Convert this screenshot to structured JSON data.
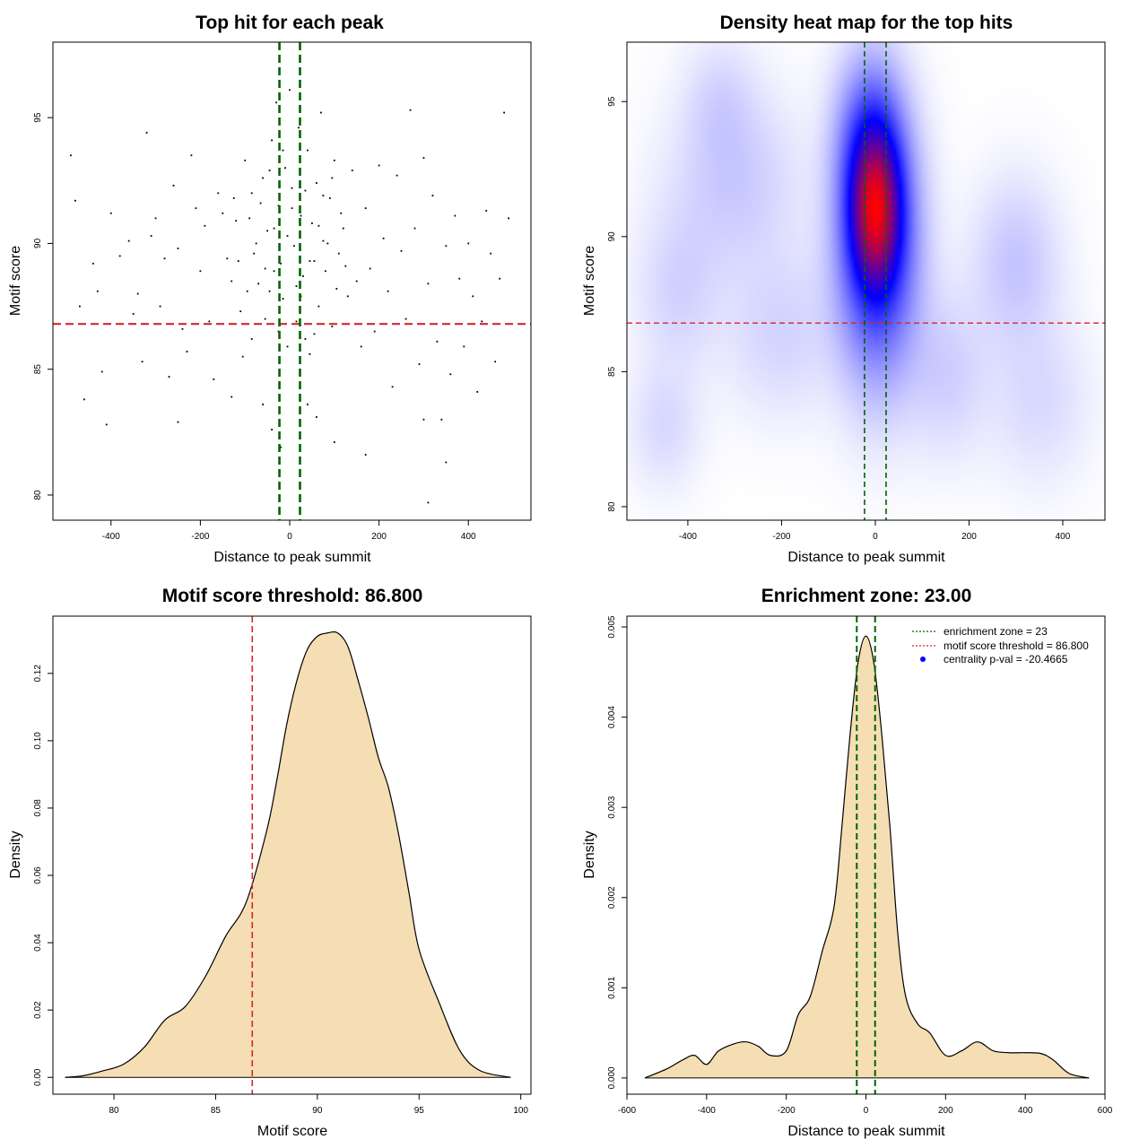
{
  "colors": {
    "threshold": "#d62728",
    "zone": "#006400",
    "fill": "#f5deb3",
    "heat_low": "#ffffff",
    "heat_mid": "#0000ff",
    "heat_high": "#ff0000",
    "legend_point": "#0000ff"
  },
  "chart_data": [
    {
      "id": "scatter",
      "type": "scatter",
      "title": "Top hit for each peak",
      "xlabel": "Distance to peak summit",
      "ylabel": "Motif score",
      "xlim": [
        -530,
        540
      ],
      "ylim": [
        79,
        98
      ],
      "xticks": [
        "-400",
        "-200",
        "0",
        "200",
        "400"
      ],
      "yticks": [
        "80",
        "85",
        "90",
        "95"
      ],
      "threshold_y": 86.8,
      "zone_x": [
        -23,
        23
      ],
      "points": [
        [
          -490,
          93.5
        ],
        [
          -480,
          91.7
        ],
        [
          -470,
          87.5
        ],
        [
          -460,
          83.8
        ],
        [
          -440,
          89.2
        ],
        [
          -430,
          88.1
        ],
        [
          -420,
          84.9
        ],
        [
          -410,
          82.8
        ],
        [
          -400,
          91.2
        ],
        [
          -380,
          89.5
        ],
        [
          -360,
          90.1
        ],
        [
          -350,
          87.2
        ],
        [
          -340,
          88.0
        ],
        [
          -330,
          85.3
        ],
        [
          -320,
          94.4
        ],
        [
          -310,
          90.3
        ],
        [
          -300,
          91.0
        ],
        [
          -290,
          87.5
        ],
        [
          -280,
          89.4
        ],
        [
          -270,
          84.7
        ],
        [
          -260,
          92.3
        ],
        [
          -250,
          89.8
        ],
        [
          -240,
          86.6
        ],
        [
          -230,
          85.7
        ],
        [
          -220,
          93.5
        ],
        [
          -210,
          91.4
        ],
        [
          -200,
          88.9
        ],
        [
          -190,
          90.7
        ],
        [
          -180,
          86.9
        ],
        [
          -170,
          84.6
        ],
        [
          -160,
          92.0
        ],
        [
          -150,
          91.2
        ],
        [
          -140,
          89.4
        ],
        [
          -130,
          88.5
        ],
        [
          -120,
          90.9
        ],
        [
          -110,
          87.3
        ],
        [
          -100,
          93.3
        ],
        [
          -90,
          91.0
        ],
        [
          -80,
          89.6
        ],
        [
          -70,
          88.4
        ],
        [
          -60,
          92.6
        ],
        [
          -50,
          90.5
        ],
        [
          -40,
          94.1
        ],
        [
          -35,
          88.9
        ],
        [
          -30,
          95.6
        ],
        [
          -25,
          91.5
        ],
        [
          -20,
          89.2
        ],
        [
          -15,
          87.8
        ],
        [
          -10,
          93.0
        ],
        [
          -5,
          90.3
        ],
        [
          0,
          96.1
        ],
        [
          5,
          92.2
        ],
        [
          10,
          89.9
        ],
        [
          15,
          88.3
        ],
        [
          20,
          94.6
        ],
        [
          25,
          91.1
        ],
        [
          30,
          88.7
        ],
        [
          35,
          86.2
        ],
        [
          40,
          93.7
        ],
        [
          50,
          90.8
        ],
        [
          55,
          89.3
        ],
        [
          60,
          92.4
        ],
        [
          65,
          87.5
        ],
        [
          70,
          95.2
        ],
        [
          75,
          90.1
        ],
        [
          80,
          88.9
        ],
        [
          90,
          91.8
        ],
        [
          95,
          86.7
        ],
        [
          100,
          93.3
        ],
        [
          110,
          89.6
        ],
        [
          120,
          90.6
        ],
        [
          130,
          87.9
        ],
        [
          140,
          92.9
        ],
        [
          150,
          88.5
        ],
        [
          160,
          85.9
        ],
        [
          170,
          91.4
        ],
        [
          180,
          89.0
        ],
        [
          190,
          86.5
        ],
        [
          200,
          93.1
        ],
        [
          210,
          90.2
        ],
        [
          220,
          88.1
        ],
        [
          230,
          84.3
        ],
        [
          240,
          92.7
        ],
        [
          250,
          89.7
        ],
        [
          260,
          87.0
        ],
        [
          270,
          95.3
        ],
        [
          280,
          90.6
        ],
        [
          290,
          85.2
        ],
        [
          300,
          93.4
        ],
        [
          310,
          88.4
        ],
        [
          320,
          91.9
        ],
        [
          330,
          86.1
        ],
        [
          340,
          83.0
        ],
        [
          350,
          89.9
        ],
        [
          360,
          84.8
        ],
        [
          370,
          91.1
        ],
        [
          380,
          88.6
        ],
        [
          390,
          85.9
        ],
        [
          400,
          90.0
        ],
        [
          410,
          87.9
        ],
        [
          420,
          84.1
        ],
        [
          430,
          86.9
        ],
        [
          440,
          91.3
        ],
        [
          450,
          89.6
        ],
        [
          460,
          85.3
        ],
        [
          470,
          88.6
        ],
        [
          480,
          95.2
        ],
        [
          490,
          91.0
        ],
        [
          -130,
          83.9
        ],
        [
          -60,
          83.6
        ],
        [
          -40,
          82.6
        ],
        [
          -20,
          81.9
        ],
        [
          40,
          83.6
        ],
        [
          60,
          83.1
        ],
        [
          100,
          82.1
        ],
        [
          170,
          81.6
        ],
        [
          300,
          83.0
        ],
        [
          310,
          79.7
        ],
        [
          350,
          81.3
        ],
        [
          -250,
          82.9
        ],
        [
          -105,
          85.5
        ],
        [
          -85,
          86.2
        ],
        [
          -55,
          87.0
        ],
        [
          -45,
          88.1
        ],
        [
          -25,
          86.5
        ],
        [
          -5,
          85.9
        ],
        [
          15,
          86.9
        ],
        [
          25,
          87.9
        ],
        [
          45,
          85.6
        ],
        [
          55,
          86.4
        ],
        [
          -75,
          90.0
        ],
        [
          -65,
          91.6
        ],
        [
          -55,
          89.0
        ],
        [
          -45,
          92.9
        ],
        [
          -35,
          90.6
        ],
        [
          -15,
          93.7
        ],
        [
          5,
          91.4
        ],
        [
          35,
          92.1
        ],
        [
          45,
          89.3
        ],
        [
          65,
          90.7
        ],
        [
          75,
          91.9
        ],
        [
          85,
          90.0
        ],
        [
          95,
          92.6
        ],
        [
          105,
          88.2
        ],
        [
          115,
          91.2
        ],
        [
          125,
          89.1
        ],
        [
          -95,
          88.1
        ],
        [
          -85,
          92.0
        ],
        [
          -115,
          89.3
        ],
        [
          -125,
          91.8
        ]
      ]
    },
    {
      "id": "heatmap",
      "type": "heatmap",
      "title": "Density heat map for the top hits",
      "xlabel": "Distance to peak summit",
      "ylabel": "Motif score",
      "xlim": [
        -530,
        490
      ],
      "ylim": [
        79.5,
        97.2
      ],
      "xticks": [
        "-400",
        "-200",
        "0",
        "200",
        "400"
      ],
      "yticks": [
        "80",
        "85",
        "90",
        "95"
      ],
      "threshold_y": 86.8,
      "zone_x": [
        -23,
        23
      ],
      "blobs": [
        {
          "x": 0,
          "y": 91.0,
          "sx": 35,
          "sy": 1.8,
          "w": 1.0
        },
        {
          "x": 5,
          "y": 89.5,
          "sx": 55,
          "sy": 3.0,
          "w": 0.55
        },
        {
          "x": -10,
          "y": 93.5,
          "sx": 45,
          "sy": 2.0,
          "w": 0.35
        },
        {
          "x": -300,
          "y": 92.0,
          "sx": 90,
          "sy": 2.2,
          "w": 0.08
        },
        {
          "x": -420,
          "y": 88.0,
          "sx": 60,
          "sy": 2.0,
          "w": 0.06
        },
        {
          "x": 300,
          "y": 89.0,
          "sx": 60,
          "sy": 2.0,
          "w": 0.09
        },
        {
          "x": -200,
          "y": 86.5,
          "sx": 80,
          "sy": 2.0,
          "w": 0.06
        },
        {
          "x": 150,
          "y": 85.0,
          "sx": 60,
          "sy": 2.0,
          "w": 0.07
        },
        {
          "x": -330,
          "y": 95.0,
          "sx": 50,
          "sy": 1.5,
          "w": 0.05
        },
        {
          "x": 350,
          "y": 84.0,
          "sx": 70,
          "sy": 2.0,
          "w": 0.05
        },
        {
          "x": -450,
          "y": 83.0,
          "sx": 50,
          "sy": 1.5,
          "w": 0.05
        }
      ]
    },
    {
      "id": "score_density",
      "type": "area",
      "title": "Motif score threshold: 86.800",
      "xlabel": "Motif score",
      "ylabel": "Density",
      "xlim": [
        77,
        100.5
      ],
      "ylim": [
        -0.005,
        0.137
      ],
      "xticks": [
        "80",
        "85",
        "90",
        "95",
        "100"
      ],
      "yticks": [
        "0.00",
        "0.02",
        "0.04",
        "0.06",
        "0.08",
        "0.10",
        "0.12"
      ],
      "threshold_x": 86.8,
      "x": [
        77.6,
        78.5,
        79.5,
        80.5,
        81.5,
        82.5,
        83.5,
        84.5,
        85.5,
        86.5,
        87.5,
        88.0,
        88.5,
        89.0,
        89.5,
        90.0,
        90.5,
        91.0,
        91.5,
        92.0,
        92.5,
        93.0,
        93.5,
        94.0,
        94.5,
        95.0,
        96.0,
        97.0,
        98.0,
        99.5
      ],
      "y": [
        0.0,
        0.0005,
        0.002,
        0.004,
        0.009,
        0.017,
        0.021,
        0.03,
        0.042,
        0.052,
        0.073,
        0.088,
        0.105,
        0.118,
        0.127,
        0.131,
        0.132,
        0.132,
        0.128,
        0.118,
        0.107,
        0.095,
        0.086,
        0.072,
        0.055,
        0.038,
        0.022,
        0.008,
        0.002,
        0.0
      ]
    },
    {
      "id": "distance_density",
      "type": "area",
      "title": "Enrichment zone: 23.00",
      "xlabel": "Distance to peak summit",
      "ylabel": "Density",
      "xlim": [
        -600,
        600
      ],
      "ylim": [
        -0.00018,
        0.00512
      ],
      "xticks": [
        "-600",
        "-400",
        "-200",
        "0",
        "200",
        "400",
        "600"
      ],
      "yticks": [
        "0.000",
        "0.001",
        "0.002",
        "0.003",
        "0.004",
        "0.005"
      ],
      "zone_x": [
        -23,
        23
      ],
      "x": [
        -555,
        -500,
        -460,
        -430,
        -400,
        -370,
        -330,
        -300,
        -270,
        -240,
        -200,
        -170,
        -140,
        -110,
        -80,
        -60,
        -40,
        -20,
        0,
        20,
        40,
        60,
        80,
        100,
        130,
        160,
        200,
        240,
        280,
        320,
        360,
        400,
        440,
        470,
        510,
        560
      ],
      "y": [
        0.0,
        0.0001,
        0.0002,
        0.00025,
        0.00015,
        0.0003,
        0.00038,
        0.0004,
        0.00035,
        0.00025,
        0.0003,
        0.0007,
        0.0009,
        0.0014,
        0.0019,
        0.0028,
        0.0038,
        0.0046,
        0.0049,
        0.0046,
        0.0038,
        0.0028,
        0.0016,
        0.0009,
        0.0006,
        0.0005,
        0.00025,
        0.0003,
        0.0004,
        0.0003,
        0.00028,
        0.00028,
        0.00027,
        0.0002,
        5e-05,
        0.0
      ],
      "legend": [
        {
          "label": "enrichment zone = 23",
          "kind": "dotted-line",
          "color": "#006400"
        },
        {
          "label": "motif score threshold = 86.800",
          "kind": "dotted-line",
          "color": "#d62728"
        },
        {
          "label": "centrality p-val = -20.4665",
          "kind": "point",
          "color": "#0000ff"
        }
      ]
    }
  ]
}
